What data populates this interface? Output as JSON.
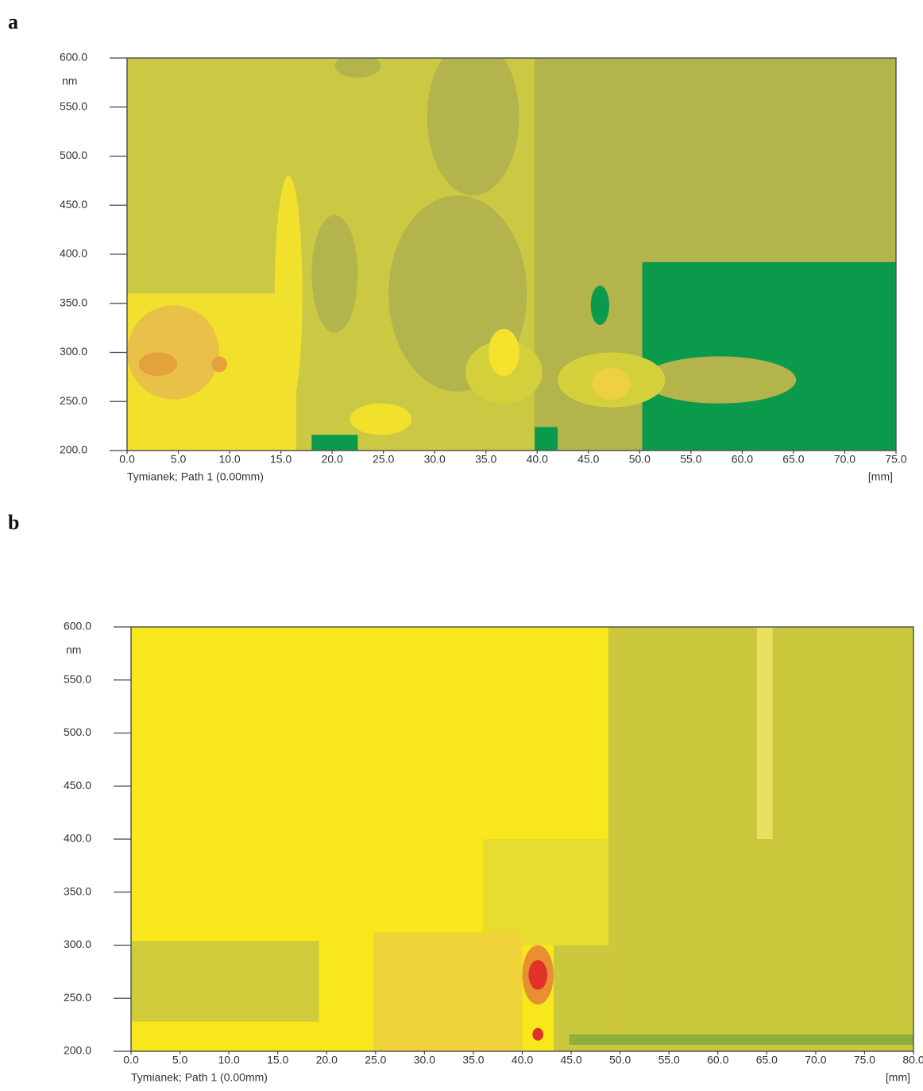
{
  "chart_data": [
    {
      "type": "contour",
      "panel": "a",
      "y_unit": "nm",
      "x_unit": "[mm]",
      "caption": "Tymianek; Path 1 (0.00mm)",
      "xlim": [
        0,
        75
      ],
      "ylim": [
        200,
        600
      ],
      "xticks": [
        {
          "value": 0,
          "label": "0.0"
        },
        {
          "value": 5,
          "label": "5.0"
        },
        {
          "value": 10,
          "label": "10.0"
        },
        {
          "value": 15,
          "label": "15.0"
        },
        {
          "value": 20,
          "label": "20.0"
        },
        {
          "value": 25,
          "label": "25.0"
        },
        {
          "value": 30,
          "label": "30.0"
        },
        {
          "value": 35,
          "label": "35.0"
        },
        {
          "value": 40,
          "label": "40.0"
        },
        {
          "value": 45,
          "label": "45.0"
        },
        {
          "value": 50,
          "label": "50.0"
        },
        {
          "value": 55,
          "label": "55.0"
        },
        {
          "value": 60,
          "label": "60.0"
        },
        {
          "value": 65,
          "label": "65.0"
        },
        {
          "value": 70,
          "label": "70.0"
        },
        {
          "value": 75,
          "label": "75.0"
        }
      ],
      "yticks": [
        {
          "value": 200,
          "label": "200.0"
        },
        {
          "value": 250,
          "label": "250.0"
        },
        {
          "value": 300,
          "label": "300.0"
        },
        {
          "value": 350,
          "label": "350.0"
        },
        {
          "value": 400,
          "label": "400.0"
        },
        {
          "value": 450,
          "label": "450.0"
        },
        {
          "value": 500,
          "label": "500.0"
        },
        {
          "value": 550,
          "label": "550.0"
        },
        {
          "value": 600,
          "label": "600.0"
        }
      ]
    },
    {
      "type": "contour",
      "panel": "b",
      "y_unit": "nm",
      "x_unit": "[mm]",
      "caption": "Tymianek; Path 1 (0.00mm)",
      "xlim": [
        0,
        80
      ],
      "ylim": [
        200,
        600
      ],
      "xticks": [
        {
          "value": 0,
          "label": "0.0"
        },
        {
          "value": 5,
          "label": "5.0"
        },
        {
          "value": 10,
          "label": "10.0"
        },
        {
          "value": 15,
          "label": "15.0"
        },
        {
          "value": 20,
          "label": "20.0"
        },
        {
          "value": 25,
          "label": "25.0"
        },
        {
          "value": 30,
          "label": "30.0"
        },
        {
          "value": 35,
          "label": "35.0"
        },
        {
          "value": 40,
          "label": "40.0"
        },
        {
          "value": 45,
          "label": "45.0"
        },
        {
          "value": 50,
          "label": "50.0"
        },
        {
          "value": 55,
          "label": "55.0"
        },
        {
          "value": 60,
          "label": "60.0"
        },
        {
          "value": 65,
          "label": "65.0"
        },
        {
          "value": 70,
          "label": "70.0"
        },
        {
          "value": 75,
          "label": "75.0"
        },
        {
          "value": 80,
          "label": "80.0"
        }
      ],
      "yticks": [
        {
          "value": 200,
          "label": "200.0"
        },
        {
          "value": 250,
          "label": "250.0"
        },
        {
          "value": 300,
          "label": "300.0"
        },
        {
          "value": 350,
          "label": "350.0"
        },
        {
          "value": 400,
          "label": "400.0"
        },
        {
          "value": 450,
          "label": "450.0"
        },
        {
          "value": 500,
          "label": "500.0"
        },
        {
          "value": 550,
          "label": "550.0"
        },
        {
          "value": 600,
          "label": "600.0"
        }
      ]
    }
  ]
}
